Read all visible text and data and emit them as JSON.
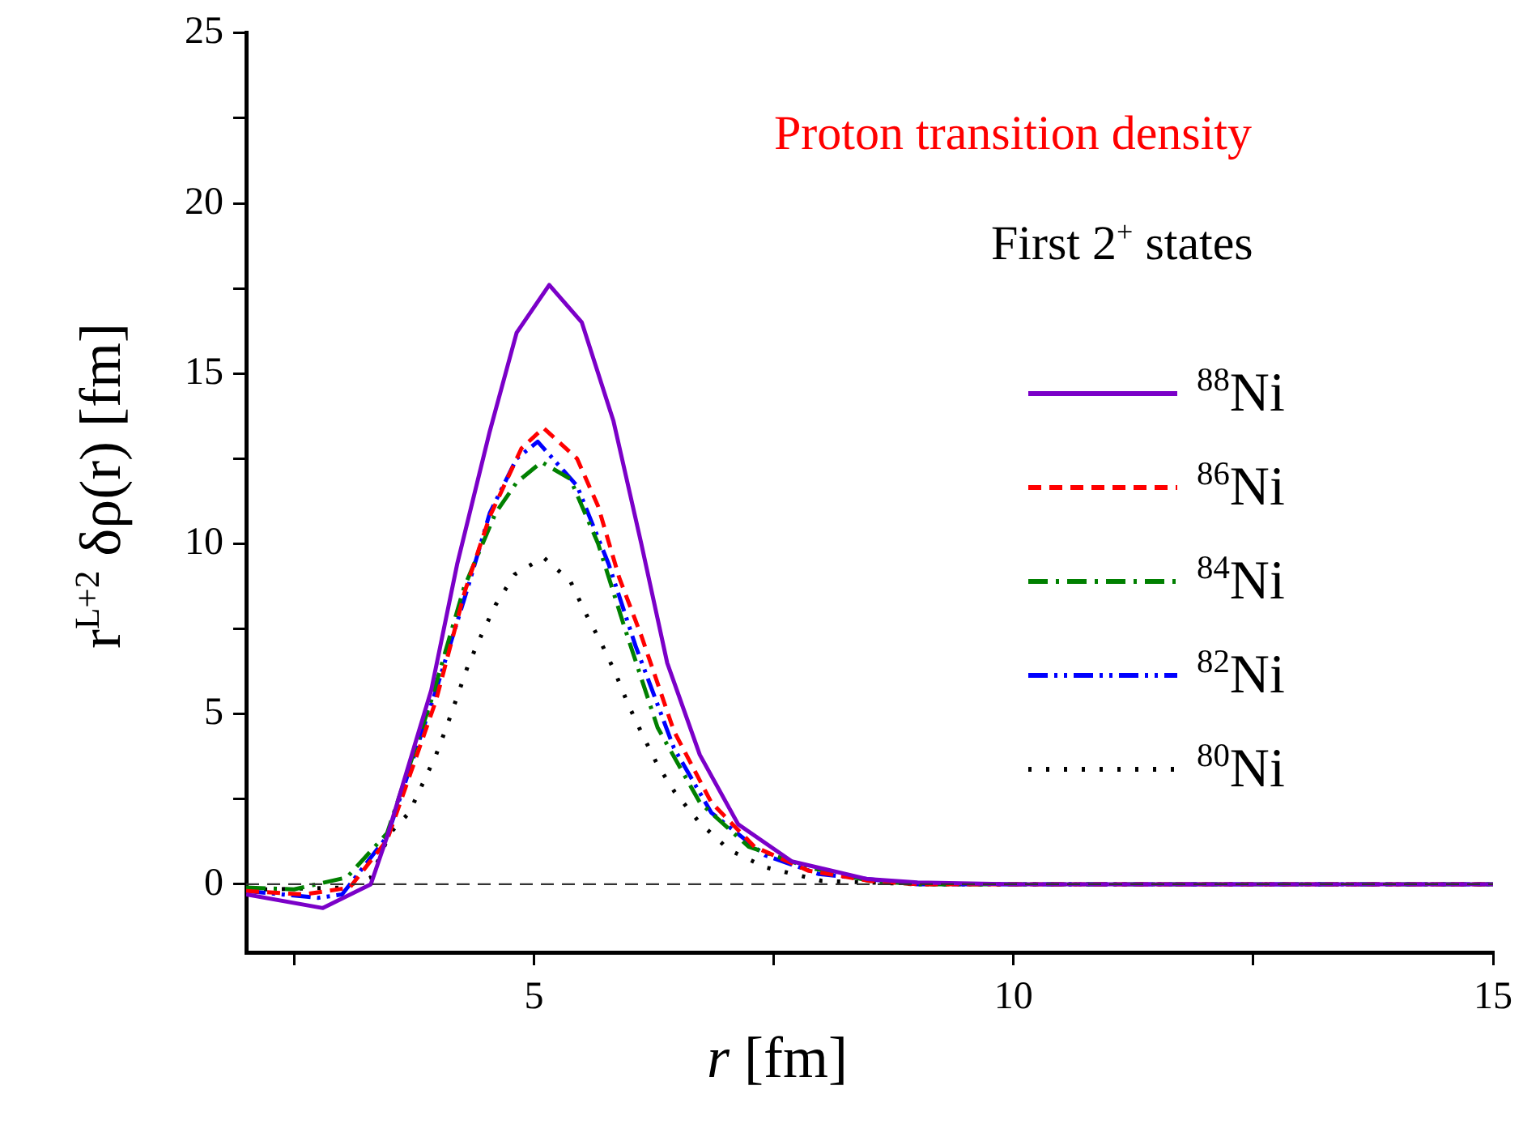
{
  "chart_data": {
    "type": "line",
    "xlabel": "r  [fm]",
    "ylabel": "r$^{L+2}$ δρ(r)  [fm]",
    "annotations": [
      "Proton transition density",
      "First 2$^{+}$ states"
    ],
    "xlim": [
      2,
      15
    ],
    "xticks": [
      {
        "value": 2.5,
        "label": null
      },
      5,
      {
        "value": 7.5,
        "label": null
      },
      10,
      {
        "value": 12.5,
        "label": null
      },
      15
    ],
    "ylim": [
      -2,
      25
    ],
    "yticks": [
      0,
      {
        "value": 2.5,
        "label": null
      },
      5,
      {
        "value": 7.5,
        "label": null
      },
      10,
      {
        "value": 12.5,
        "label": null
      },
      15,
      {
        "value": 17.5,
        "label": null
      },
      20,
      {
        "value": 22.5,
        "label": null
      },
      25
    ],
    "grid": false,
    "legend": "right",
    "marker": "none",
    "ref_lines": [
      {
        "axis": "y",
        "value": 0,
        "label": null,
        "color": "#333333",
        "line_style": "dashed"
      }
    ],
    "series": [
      {
        "name": "$^{88}$Ni",
        "color": "#7b00c8",
        "line_style": "solid",
        "x": [
          2,
          2.8,
          3.3,
          3.47,
          3.93,
          4.2,
          4.54,
          4.82,
          5.16,
          5.5,
          5.83,
          6.12,
          6.39,
          6.73,
          7.13,
          7.69,
          8.48,
          9,
          10,
          15
        ],
        "values": [
          -0.3,
          -0.7,
          0,
          1.4,
          5.7,
          9.4,
          13.3,
          16.2,
          17.6,
          16.5,
          13.6,
          10,
          6.5,
          3.8,
          1.76,
          0.67,
          0.15,
          0.05,
          0,
          0
        ]
      },
      {
        "name": "$^{86}$Ni",
        "color": "#ff0000",
        "line_style": "dashed",
        "x": [
          2,
          2.6,
          3.08,
          3.47,
          3.98,
          4.28,
          4.54,
          4.87,
          5.1,
          5.45,
          5.67,
          5.89,
          6.12,
          6.46,
          6.85,
          7.3,
          7.86,
          8.5,
          9,
          15
        ],
        "values": [
          -0.2,
          -0.3,
          -0.1,
          1.3,
          5.4,
          8.6,
          10.8,
          12.8,
          13.4,
          12.5,
          11.1,
          9,
          7.3,
          4.5,
          2.4,
          1.1,
          0.4,
          0.1,
          0,
          0
        ]
      },
      {
        "name": "$^{84}$Ni",
        "color": "#008000",
        "line_style": "dashdot",
        "x": [
          2,
          2.5,
          3.05,
          3.47,
          3.93,
          4.27,
          4.6,
          4.82,
          5.08,
          5.38,
          5.67,
          5.95,
          6.29,
          6.73,
          7.24,
          7.86,
          8.5,
          9,
          15
        ],
        "values": [
          -0.1,
          -0.15,
          0.2,
          1.5,
          5.4,
          8.7,
          10.9,
          11.8,
          12.4,
          11.9,
          10,
          7.5,
          4.6,
          2.4,
          1.1,
          0.5,
          0.1,
          0,
          0
        ]
      },
      {
        "name": "$^{82}$Ni",
        "color": "#0000ff",
        "line_style": "dashdotdot",
        "x": [
          2,
          2.75,
          3,
          3.47,
          3.98,
          4.31,
          4.54,
          4.82,
          5.04,
          5.45,
          5.78,
          6.06,
          6.46,
          6.85,
          7.41,
          7.97,
          9,
          15
        ],
        "values": [
          -0.2,
          -0.4,
          -0.3,
          1.4,
          5.7,
          8.7,
          10.9,
          12.5,
          13,
          11.7,
          9.4,
          7,
          4,
          2.1,
          0.85,
          0.3,
          0,
          0
        ]
      },
      {
        "name": "$^{80}$Ni",
        "color": "#000000",
        "line_style": "dotted",
        "x": [
          2,
          2.26,
          3,
          3.3,
          3.5,
          3.7,
          3.98,
          4.1,
          4.31,
          4.45,
          4.6,
          4.8,
          5.1,
          5.38,
          5.55,
          5.7,
          5.85,
          5.98,
          6.13,
          6.29,
          6.47,
          6.73,
          7.04,
          7.41,
          8,
          9,
          15
        ],
        "values": [
          -0.15,
          -0.15,
          -0.1,
          0.2,
          1.5,
          2.1,
          3.8,
          4.7,
          6.4,
          7.3,
          8.2,
          9.1,
          9.6,
          8.9,
          7.9,
          7.1,
          6.2,
          5.3,
          4.4,
          3.5,
          2.7,
          1.8,
          1,
          0.5,
          0.1,
          0,
          0
        ]
      }
    ]
  }
}
